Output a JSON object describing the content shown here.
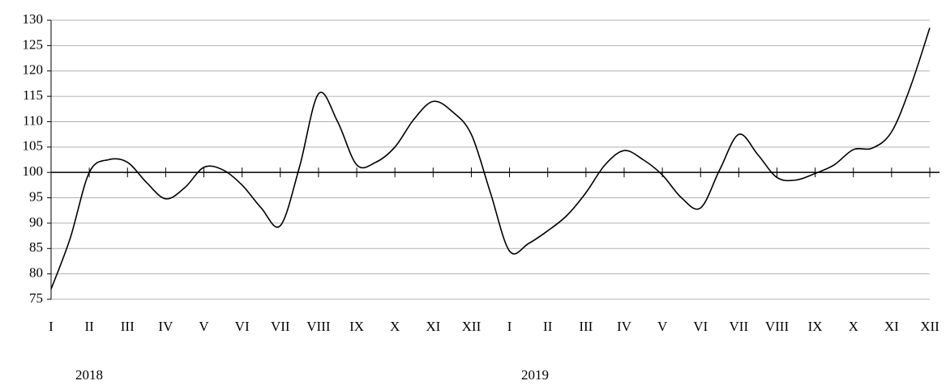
{
  "chart_data": {
    "type": "line",
    "categories": [
      "I",
      null,
      "II",
      null,
      "III",
      null,
      "IV",
      null,
      "V",
      null,
      "VI",
      null,
      "VII",
      null,
      "VIII",
      null,
      "IX",
      null,
      "X",
      null,
      "XI",
      null,
      "XII",
      null,
      "I",
      null,
      "II",
      null,
      "III",
      null,
      "IV",
      null,
      "V",
      null,
      "VI",
      null,
      "VII",
      null,
      "VIII",
      null,
      "IX",
      null,
      "X",
      null,
      "XI",
      null,
      "XII"
    ],
    "series": [
      {
        "color": "#000000",
        "values": [
          77,
          87,
          100,
          102.5,
          102,
          98,
          94.8,
          97,
          101,
          100.5,
          97.5,
          93,
          89.5,
          101,
          115.5,
          110,
          101.5,
          102,
          105,
          110.5,
          114,
          112,
          107.5,
          96,
          84.5,
          86,
          88.5,
          91.5,
          96,
          101.5,
          104.3,
          102.5,
          99.5,
          95,
          93,
          100.5,
          107.5,
          103.5,
          99,
          98.5,
          99.8,
          101.5,
          104.5,
          104.8,
          108,
          117,
          128.5
        ]
      }
    ],
    "annotations": [
      "2018",
      "2019"
    ],
    "ylim": [
      75,
      130
    ],
    "yticks": [
      75,
      80,
      85,
      90,
      95,
      100,
      105,
      110,
      115,
      120,
      125,
      130
    ],
    "xaxis_crosses": 100,
    "grid": true,
    "smooth": true
  }
}
